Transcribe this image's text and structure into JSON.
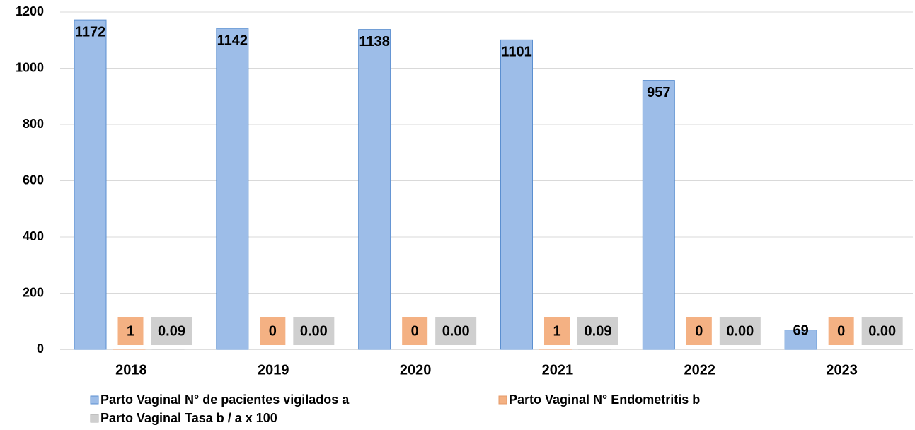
{
  "chart_data": {
    "type": "bar",
    "categories": [
      "2018",
      "2019",
      "2020",
      "2021",
      "2022",
      "2023"
    ],
    "series": [
      {
        "name": "Parto Vaginal N° de pacientes vigilados a",
        "color": "#9dbde8",
        "values": [
          1172,
          1142,
          1138,
          1101,
          957,
          69
        ]
      },
      {
        "name": "Parto Vaginal N° Endometritis b",
        "color": "#f4b183",
        "values": [
          1,
          0,
          0,
          1,
          0,
          0
        ]
      },
      {
        "name": "Parto Vaginal Tasa b / a x 100",
        "color": "#cfcfcf",
        "values": [
          0.09,
          0,
          0,
          0.09,
          0,
          0
        ],
        "value_labels": [
          "0.09",
          "0.00",
          "0.00",
          "0.09",
          "0.00",
          "0.00"
        ]
      }
    ],
    "ylim": [
      0,
      1200
    ],
    "yticks": [
      0,
      200,
      400,
      600,
      800,
      1000,
      1200
    ],
    "grid": true
  }
}
